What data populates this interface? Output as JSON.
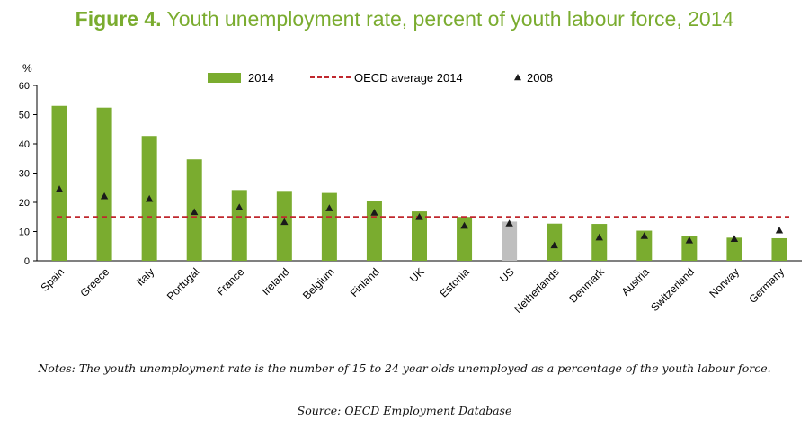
{
  "figure": {
    "label": "Figure 4.",
    "title": "Youth unemployment rate, percent of youth labour force, 2014"
  },
  "notes": "Notes: The youth unemployment rate is the number of 15 to 24 year olds unemployed as a percentage of the youth labour force.",
  "source": "Source: OECD Employment Database",
  "colors": {
    "bar": "#7aac2f",
    "bar_highlight": "#bfbfbf",
    "oecd_line": "#c0282e",
    "marker": "#1a1a1a",
    "title": "#7aac2f"
  },
  "chart_data": {
    "type": "bar",
    "title": "Youth unemployment rate, percent of youth labour force, 2014",
    "ylabel": "%",
    "xlabel": "",
    "ylim": [
      0,
      60
    ],
    "yticks": [
      0,
      10,
      20,
      30,
      40,
      50,
      60
    ],
    "grid": false,
    "legend_position": "top-center",
    "categories": [
      "Spain",
      "Greece",
      "Italy",
      "Portugal",
      "France",
      "Ireland",
      "Belgium",
      "Finland",
      "UK",
      "Estonia",
      "US",
      "Netherlands",
      "Denmark",
      "Austria",
      "Switzerland",
      "Norway",
      "Germany"
    ],
    "highlight_category": "US",
    "series": [
      {
        "name": "2014",
        "kind": "bar",
        "values": [
          53,
          52.4,
          42.7,
          34.7,
          24.2,
          23.9,
          23.2,
          20.5,
          16.9,
          15.0,
          13.4,
          12.7,
          12.6,
          10.3,
          8.6,
          7.9,
          7.7
        ]
      },
      {
        "name": "OECD average 2014",
        "kind": "hline",
        "value": 15.0
      },
      {
        "name": "2008",
        "kind": "marker",
        "values": [
          24.5,
          22.1,
          21.2,
          16.7,
          18.3,
          13.3,
          18.0,
          16.5,
          15.0,
          12.0,
          12.8,
          5.3,
          8.0,
          8.5,
          7.0,
          7.5,
          10.4
        ]
      }
    ]
  }
}
